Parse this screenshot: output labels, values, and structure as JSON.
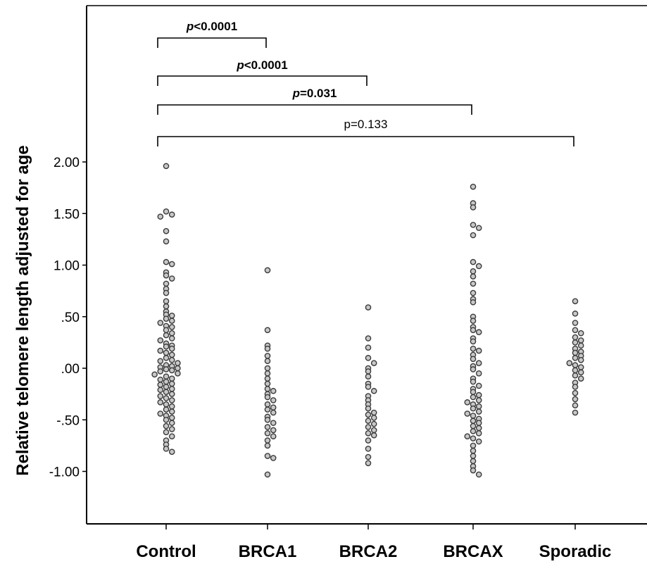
{
  "chart_data": {
    "type": "scatter",
    "subtype": "dot-strip",
    "ylabel": "Relative telomere length adjusted for age",
    "ylim": [
      -1.35,
      2.55
    ],
    "yticks": [
      {
        "value": 2.0,
        "label": "2.00"
      },
      {
        "value": 1.5,
        "label": "1.50"
      },
      {
        "value": 1.0,
        "label": "1.00"
      },
      {
        "value": 0.5,
        "label": ".50"
      },
      {
        "value": 0.0,
        "label": ".00"
      },
      {
        "value": -0.5,
        "label": "-.50"
      },
      {
        "value": -1.0,
        "label": "-1.00"
      }
    ],
    "categories": [
      "Control",
      "BRCA1",
      "BRCA2",
      "BRCAX",
      "Sporadic"
    ],
    "series": [
      {
        "category": "Control",
        "values": [
          1.96,
          1.52,
          1.49,
          1.47,
          1.33,
          1.23,
          1.03,
          1.01,
          0.93,
          0.9,
          0.87,
          0.82,
          0.77,
          0.73,
          0.65,
          0.6,
          0.55,
          0.52,
          0.51,
          0.48,
          0.46,
          0.44,
          0.41,
          0.4,
          0.37,
          0.34,
          0.32,
          0.29,
          0.27,
          0.24,
          0.22,
          0.21,
          0.19,
          0.17,
          0.15,
          0.13,
          0.1,
          0.08,
          0.07,
          0.05,
          0.03,
          0.02,
          0.01,
          0.0,
          -0.01,
          -0.02,
          -0.03,
          -0.05,
          -0.06,
          -0.08,
          -0.1,
          -0.11,
          -0.13,
          -0.15,
          -0.16,
          -0.18,
          -0.2,
          -0.21,
          -0.23,
          -0.25,
          -0.27,
          -0.29,
          -0.31,
          -0.33,
          -0.35,
          -0.37,
          -0.4,
          -0.42,
          -0.44,
          -0.46,
          -0.48,
          -0.5,
          -0.53,
          -0.56,
          -0.59,
          -0.62,
          -0.66,
          -0.7,
          -0.74,
          -0.78,
          -0.81
        ]
      },
      {
        "category": "BRCA1",
        "values": [
          0.95,
          0.37,
          0.22,
          0.19,
          0.12,
          0.07,
          0.0,
          -0.05,
          -0.1,
          -0.15,
          -0.2,
          -0.22,
          -0.25,
          -0.28,
          -0.31,
          -0.35,
          -0.38,
          -0.4,
          -0.43,
          -0.47,
          -0.5,
          -0.53,
          -0.57,
          -0.6,
          -0.63,
          -0.66,
          -0.7,
          -0.75,
          -0.85,
          -0.87,
          -1.03
        ]
      },
      {
        "category": "BRCA2",
        "values": [
          0.59,
          0.29,
          0.2,
          0.1,
          0.05,
          0.0,
          -0.03,
          -0.08,
          -0.15,
          -0.18,
          -0.22,
          -0.27,
          -0.31,
          -0.35,
          -0.39,
          -0.43,
          -0.45,
          -0.48,
          -0.51,
          -0.54,
          -0.57,
          -0.6,
          -0.63,
          -0.65,
          -0.7,
          -0.78,
          -0.86,
          -0.92
        ]
      },
      {
        "category": "BRCAX",
        "values": [
          1.76,
          1.6,
          1.56,
          1.39,
          1.36,
          1.29,
          1.03,
          0.99,
          0.94,
          0.89,
          0.82,
          0.73,
          0.67,
          0.64,
          0.5,
          0.46,
          0.4,
          0.37,
          0.35,
          0.29,
          0.26,
          0.19,
          0.17,
          0.13,
          0.09,
          0.05,
          0.02,
          -0.01,
          -0.05,
          -0.1,
          -0.13,
          -0.17,
          -0.2,
          -0.23,
          -0.26,
          -0.28,
          -0.31,
          -0.33,
          -0.35,
          -0.37,
          -0.39,
          -0.42,
          -0.44,
          -0.46,
          -0.49,
          -0.51,
          -0.53,
          -0.56,
          -0.58,
          -0.61,
          -0.63,
          -0.66,
          -0.68,
          -0.71,
          -0.75,
          -0.8,
          -0.85,
          -0.9,
          -0.95,
          -0.99,
          -1.03
        ]
      },
      {
        "category": "Sporadic",
        "values": [
          0.65,
          0.53,
          0.44,
          0.37,
          0.34,
          0.3,
          0.27,
          0.25,
          0.22,
          0.19,
          0.16,
          0.15,
          0.12,
          0.1,
          0.08,
          0.05,
          0.03,
          0.01,
          -0.02,
          -0.04,
          -0.07,
          -0.1,
          -0.14,
          -0.18,
          -0.24,
          -0.3,
          -0.36,
          -0.43
        ]
      }
    ],
    "comparisons": [
      {
        "from": "Control",
        "to": "BRCA1",
        "label_prefix": "p",
        "label_rest": "<0.0001",
        "bold": true
      },
      {
        "from": "Control",
        "to": "BRCA2",
        "label_prefix": "p",
        "label_rest": "<0.0001",
        "bold": true
      },
      {
        "from": "Control",
        "to": "BRCAX",
        "label_prefix": "p",
        "label_rest": "=0.031",
        "bold": true
      },
      {
        "from": "Control",
        "to": "Sporadic",
        "label_prefix": "p",
        "label_rest": "=0.133",
        "bold": false
      }
    ],
    "grid": false,
    "colors": {
      "marker_fill": "#c8c8c8",
      "marker_stroke": "#3a3a3a",
      "axis": "#000000"
    }
  }
}
